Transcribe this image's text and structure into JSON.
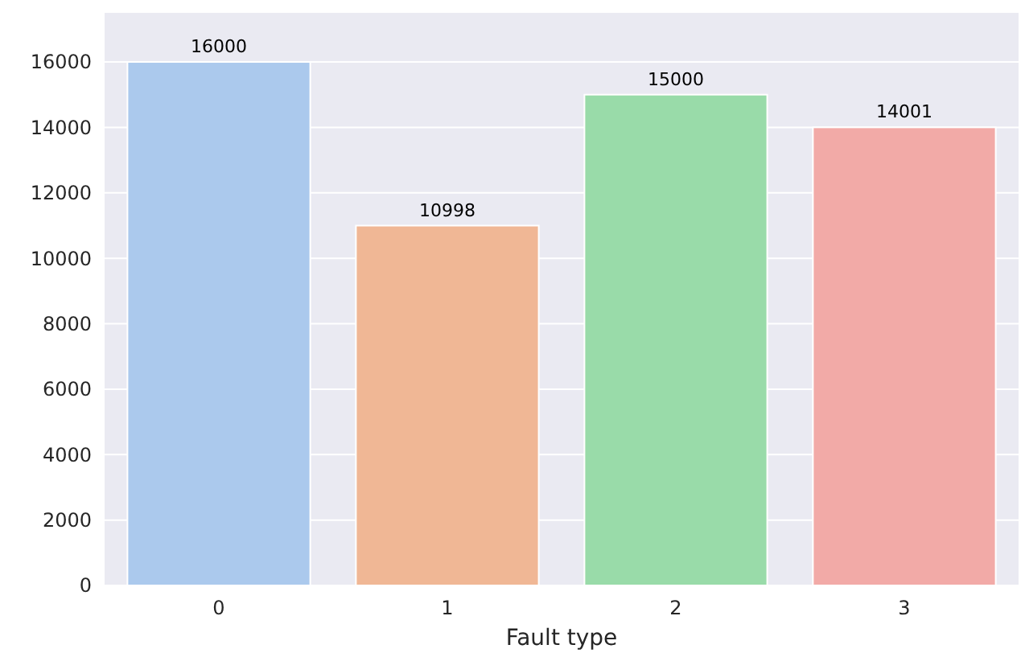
{
  "chart_data": {
    "type": "bar",
    "xlabel": "Fault type",
    "categories": [
      "0",
      "1",
      "2",
      "3"
    ],
    "values": [
      16000,
      10998,
      15000,
      14001
    ],
    "colors": [
      "#abc9ed",
      "#f0b795",
      "#99dba9",
      "#f2aaa7"
    ],
    "ylim": [
      0,
      17500
    ],
    "yticks": [
      0,
      2000,
      4000,
      6000,
      8000,
      10000,
      12000,
      14000,
      16000
    ],
    "grid": true,
    "data_labels": true
  }
}
